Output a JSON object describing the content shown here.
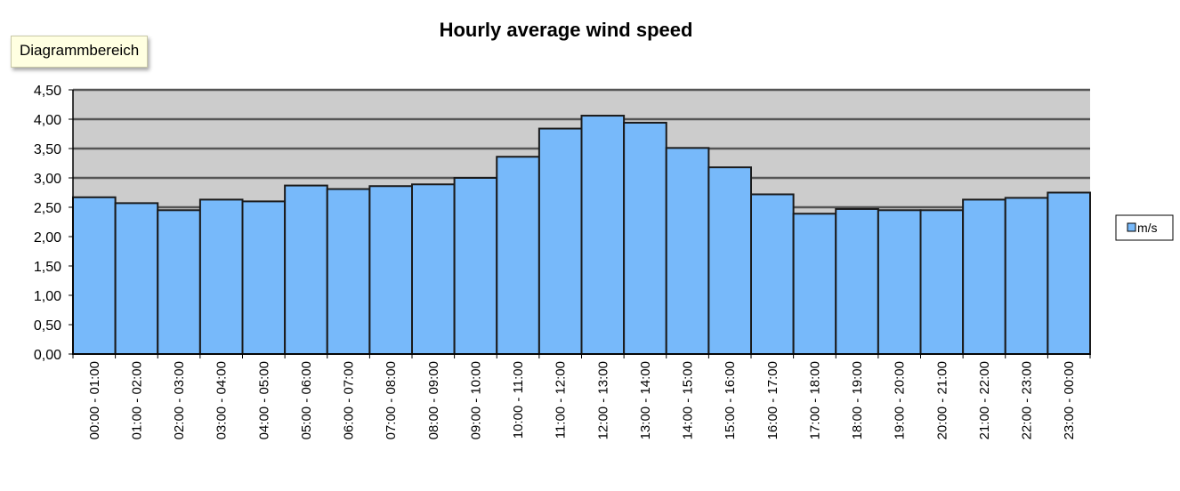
{
  "tooltip": {
    "text": "Diagrammbereich"
  },
  "colors": {
    "plot_background": "#cccccc",
    "bar_fill": "#77b9fa",
    "bar_stroke": "#1a1a1a",
    "gridline": "#555555"
  },
  "chart_data": {
    "type": "bar",
    "title": "Hourly average wind speed",
    "xlabel": "",
    "ylabel": "",
    "ylim": [
      0,
      4.5
    ],
    "y_ticks": [
      "0,00",
      "0,50",
      "1,00",
      "1,50",
      "2,00",
      "2,50",
      "3,00",
      "3,50",
      "4,00",
      "4,50"
    ],
    "grid": true,
    "legend_position": "right",
    "categories": [
      "00:00 - 01:00",
      "01:00 - 02:00",
      "02:00 - 03:00",
      "03:00 - 04:00",
      "04:00 - 05:00",
      "05:00 - 06:00",
      "06:00 - 07:00",
      "07:00 - 08:00",
      "08:00 - 09:00",
      "09:00 - 10:00",
      "10:00 - 11:00",
      "11:00 - 12:00",
      "12:00 - 13:00",
      "13:00 - 14:00",
      "14:00 - 15:00",
      "15:00 - 16:00",
      "16:00 - 17:00",
      "17:00 - 18:00",
      "18:00 - 19:00",
      "19:00 - 20:00",
      "20:00 - 21:00",
      "21:00 - 22:00",
      "22:00 - 23:00",
      "23:00 - 00:00"
    ],
    "series": [
      {
        "name": "m/s",
        "values": [
          2.67,
          2.57,
          2.45,
          2.63,
          2.6,
          2.87,
          2.81,
          2.86,
          2.89,
          3.0,
          3.36,
          3.84,
          4.06,
          3.94,
          3.51,
          3.18,
          2.72,
          2.39,
          2.47,
          2.45,
          2.45,
          2.63,
          2.66,
          2.75
        ]
      }
    ]
  }
}
